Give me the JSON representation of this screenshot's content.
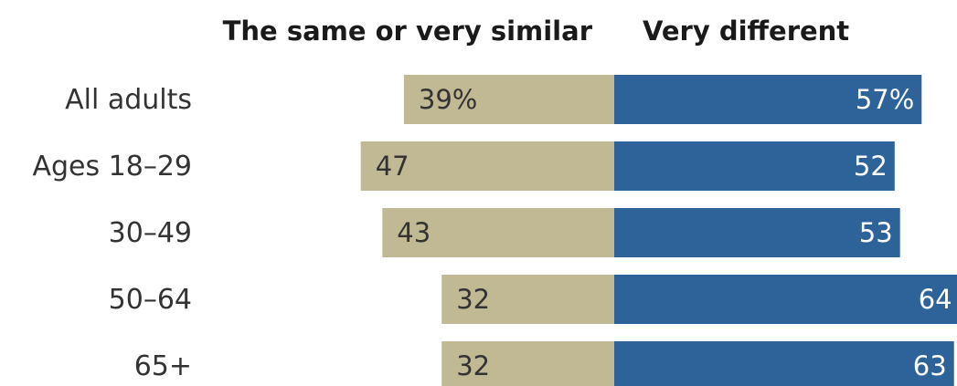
{
  "chart_data": {
    "type": "bar",
    "orientation": "horizontal-diverging",
    "title": "",
    "categories": [
      "All adults",
      "Ages 18–29",
      "30–49",
      "50–64",
      "65+"
    ],
    "series": [
      {
        "name": "The same or very similar",
        "values": [
          39,
          47,
          43,
          32,
          32
        ],
        "labels": [
          "39%",
          "47",
          "43",
          "32",
          "32"
        ],
        "color": "#c1b993"
      },
      {
        "name": "Very different",
        "values": [
          57,
          52,
          53,
          64,
          63
        ],
        "labels": [
          "57%",
          "52",
          "53",
          "64",
          "63"
        ],
        "color": "#2e6399"
      }
    ],
    "xlim": [
      -47,
      64
    ],
    "grid": false,
    "legend": "top"
  }
}
